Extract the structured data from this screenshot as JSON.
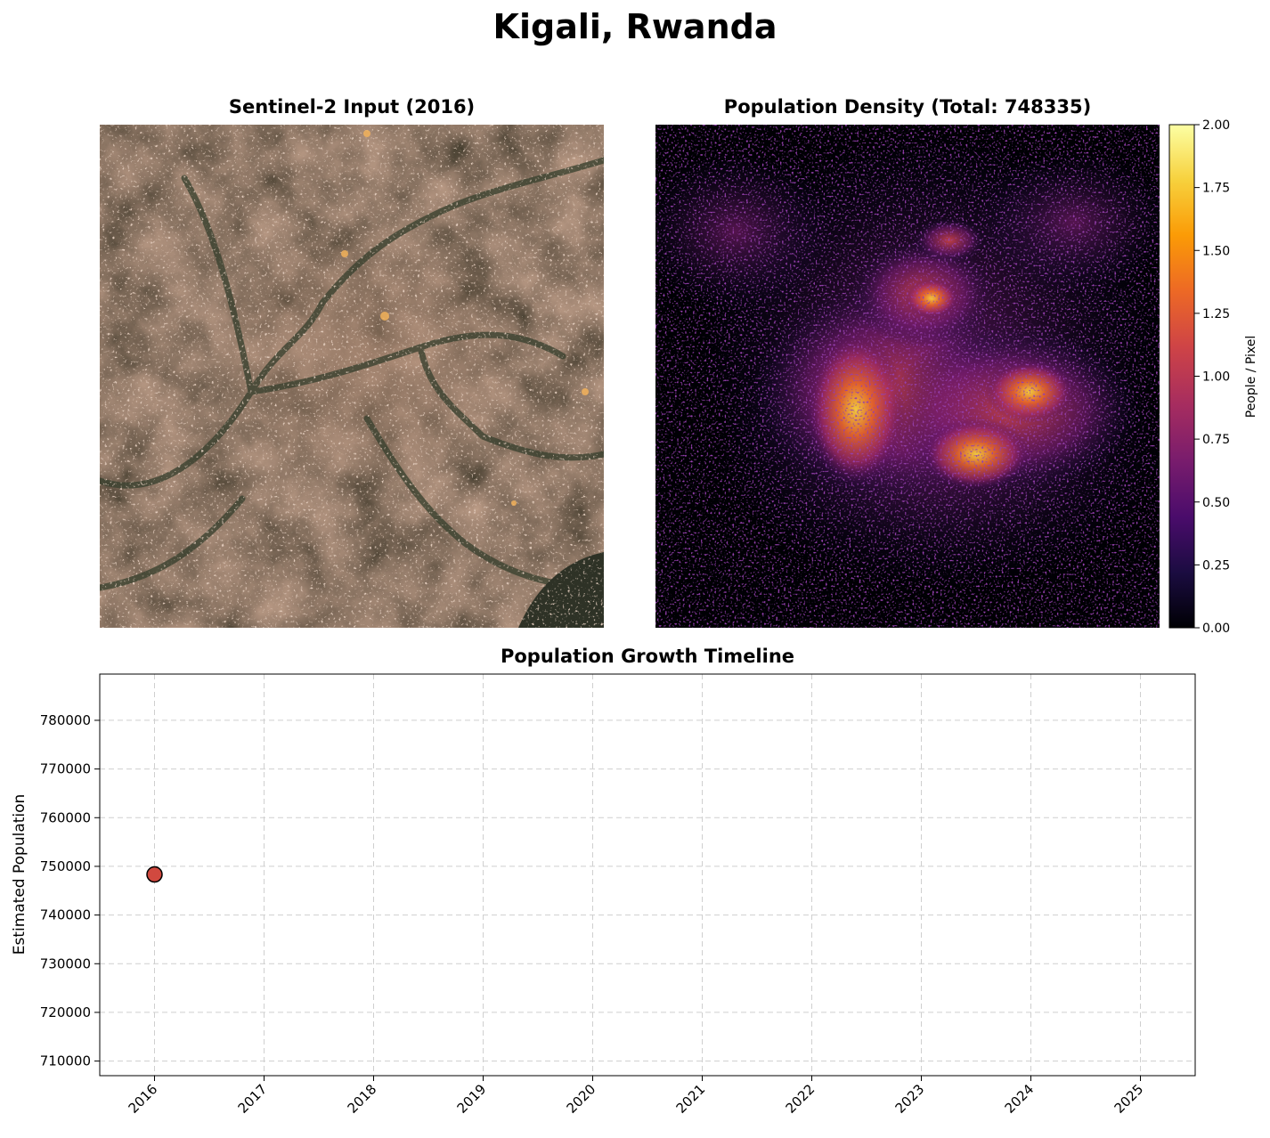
{
  "figure": {
    "title": "Kigali, Rwanda"
  },
  "panels": {
    "satellite": {
      "title": "Sentinel-2 Input (2016)"
    },
    "density": {
      "title": "Population Density (Total: 748335)",
      "colorbar": {
        "label": "People / Pixel",
        "ticks": [
          "0.00",
          "0.25",
          "0.50",
          "0.75",
          "1.00",
          "1.25",
          "1.50",
          "1.75",
          "2.00"
        ],
        "range": [
          0,
          2
        ],
        "colormap": "inferno",
        "colors": [
          "#000004",
          "#1b0c41",
          "#4a0c6b",
          "#781c6d",
          "#a52c60",
          "#cf4446",
          "#ed6925",
          "#fb9b06",
          "#f7d13d",
          "#fcffa4"
        ]
      }
    }
  },
  "chart_data": {
    "type": "scatter",
    "title": "Population Growth Timeline",
    "xlabel": "",
    "ylabel": "Estimated Population",
    "x_ticks": [
      "2016",
      "2017",
      "2018",
      "2019",
      "2020",
      "2021",
      "2022",
      "2023",
      "2024",
      "2025"
    ],
    "xlim": [
      2015.5,
      2025.5
    ],
    "y_ticks": [
      710000,
      720000,
      730000,
      740000,
      750000,
      760000,
      770000,
      780000
    ],
    "ylim": [
      707000,
      789500
    ],
    "grid": true,
    "points": [
      {
        "x": 2016,
        "y": 748335
      }
    ],
    "marker_color": "#d1493f",
    "marker_edge_color": "#000000"
  }
}
